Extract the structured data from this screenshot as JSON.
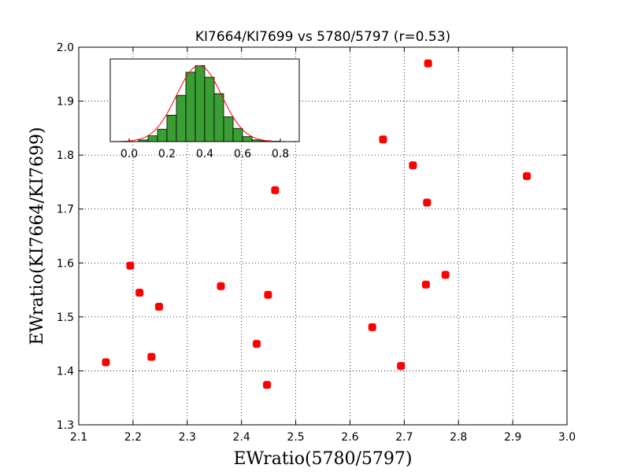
{
  "chart_data": [
    {
      "type": "scatter",
      "title": "KI7664/KI7699 vs 5780/5797 (r=0.53)",
      "xlabel": "EWratio(5780/5797)",
      "ylabel": "EWratio(KI7664/KI7699)",
      "xlim": [
        2.1,
        3.0
      ],
      "ylim": [
        1.3,
        2.0
      ],
      "xticks": [
        "2.1",
        "2.2",
        "2.3",
        "2.4",
        "2.5",
        "2.6",
        "2.7",
        "2.8",
        "2.9",
        "3.0"
      ],
      "yticks": [
        "1.3",
        "1.4",
        "1.5",
        "1.6",
        "1.7",
        "1.8",
        "1.9",
        "2.0"
      ],
      "grid": true,
      "marker_color": "#ff0000",
      "points": [
        {
          "x": 2.15,
          "y": 1.416
        },
        {
          "x": 2.195,
          "y": 1.595
        },
        {
          "x": 2.212,
          "y": 1.545
        },
        {
          "x": 2.234,
          "y": 1.426
        },
        {
          "x": 2.248,
          "y": 1.519
        },
        {
          "x": 2.362,
          "y": 1.557
        },
        {
          "x": 2.428,
          "y": 1.45
        },
        {
          "x": 2.447,
          "y": 1.374
        },
        {
          "x": 2.449,
          "y": 1.541
        },
        {
          "x": 2.462,
          "y": 1.735
        },
        {
          "x": 2.641,
          "y": 1.481
        },
        {
          "x": 2.661,
          "y": 1.829
        },
        {
          "x": 2.694,
          "y": 1.409
        },
        {
          "x": 2.716,
          "y": 1.781
        },
        {
          "x": 2.74,
          "y": 1.56
        },
        {
          "x": 2.742,
          "y": 1.712
        },
        {
          "x": 2.744,
          "y": 1.97
        },
        {
          "x": 2.776,
          "y": 1.578
        },
        {
          "x": 2.926,
          "y": 1.761
        }
      ]
    },
    {
      "type": "bar",
      "subtype": "histogram",
      "xlim": [
        -0.1,
        0.9
      ],
      "xticks": [
        "0.0",
        "0.2",
        "0.4",
        "0.6",
        "0.8"
      ],
      "bar_color": "#3a9e34",
      "curve_color": "#ff0000",
      "bin_width": 0.05,
      "bin_starts": [
        0.05,
        0.1,
        0.15,
        0.2,
        0.25,
        0.3,
        0.35,
        0.4,
        0.45,
        0.5,
        0.55,
        0.6,
        0.65,
        0.7,
        0.75
      ],
      "values": [
        2,
        7,
        15,
        32,
        56,
        84,
        92,
        78,
        58,
        30,
        16,
        6,
        2,
        1,
        0.5
      ],
      "ylim": [
        0,
        100
      ],
      "fit": {
        "mean": 0.37,
        "sigma": 0.12,
        "peak": 92
      }
    }
  ]
}
